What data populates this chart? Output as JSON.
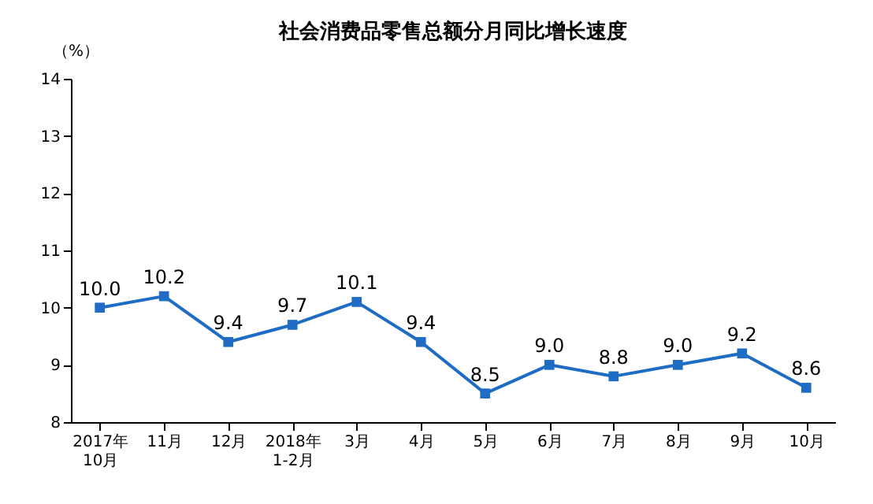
{
  "chart_data": {
    "type": "line",
    "title": "社会消费品零售总额分月同比增长速度",
    "ylabel": "（%）",
    "categories": [
      "2017年\n10月",
      "11月",
      "12月",
      "2018年\n1-2月",
      "3月",
      "4月",
      "5月",
      "6月",
      "7月",
      "8月",
      "9月",
      "10月"
    ],
    "series": [
      {
        "color": "#1f6cc5",
        "values": [
          10.0,
          10.2,
          9.4,
          9.7,
          10.1,
          9.4,
          8.5,
          9.0,
          8.8,
          9.0,
          9.2,
          8.6
        ],
        "value_labels": [
          "10.0",
          "10.2",
          "9.4",
          "9.7",
          "10.1",
          "9.4",
          "8.5",
          "9.0",
          "8.8",
          "9.0",
          "9.2",
          "8.6"
        ]
      }
    ],
    "ylim": [
      8,
      14
    ],
    "yticks": [
      8,
      9,
      10,
      11,
      12,
      13,
      14
    ],
    "data_labels": true,
    "marker": "square",
    "grid": false,
    "legend": false
  }
}
